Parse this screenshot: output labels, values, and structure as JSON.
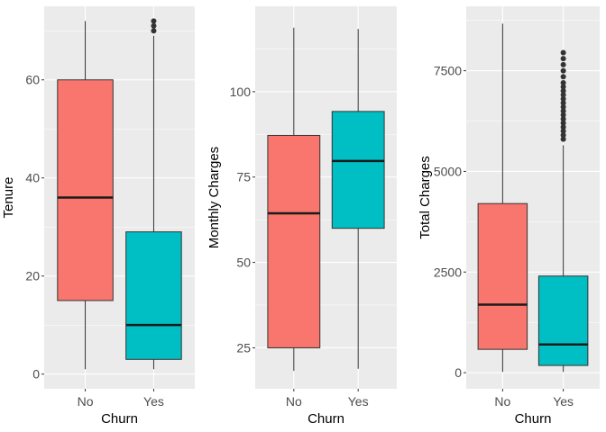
{
  "chart_data": [
    {
      "type": "boxplot",
      "xlabel": "Churn",
      "ylabel": "Tenure",
      "categories": [
        "No",
        "Yes"
      ],
      "ylim": [
        -3,
        75
      ],
      "yticks": [
        0,
        20,
        40,
        60
      ],
      "grid": true,
      "colors": [
        "#F8766D",
        "#00BFC4"
      ],
      "boxes": [
        {
          "category": "No",
          "min": 1,
          "q1": 15,
          "median": 36,
          "q3": 60,
          "max": 72,
          "outliers": []
        },
        {
          "category": "Yes",
          "min": 1,
          "q1": 3,
          "median": 10,
          "q3": 29,
          "max": 69,
          "outliers": [
            70,
            71,
            72
          ]
        }
      ]
    },
    {
      "type": "boxplot",
      "xlabel": "Churn",
      "ylabel": "Monthly Charges",
      "categories": [
        "No",
        "Yes"
      ],
      "ylim": [
        13,
        125
      ],
      "yticks": [
        25,
        50,
        75,
        100
      ],
      "grid": true,
      "colors": [
        "#F8766D",
        "#00BFC4"
      ],
      "boxes": [
        {
          "category": "No",
          "min": 18.25,
          "q1": 25,
          "median": 64.4,
          "q3": 87.2,
          "max": 118.75,
          "outliers": []
        },
        {
          "category": "Yes",
          "min": 18.85,
          "q1": 60,
          "median": 79.7,
          "q3": 94.2,
          "max": 118.35,
          "outliers": []
        }
      ]
    },
    {
      "type": "boxplot",
      "xlabel": "Churn",
      "ylabel": "Total Charges",
      "categories": [
        "No",
        "Yes"
      ],
      "ylim": [
        -400,
        9100
      ],
      "yticks": [
        0,
        2500,
        5000,
        7500
      ],
      "grid": true,
      "colors": [
        "#F8766D",
        "#00BFC4"
      ],
      "boxes": [
        {
          "category": "No",
          "min": 18.8,
          "q1": 580,
          "median": 1690,
          "q3": 4200,
          "max": 8670,
          "outliers": []
        },
        {
          "category": "Yes",
          "min": 18.85,
          "q1": 180,
          "median": 700,
          "q3": 2400,
          "max": 5650,
          "outliers": [
            5800,
            5900,
            6000,
            6100,
            6200,
            6300,
            6400,
            6500,
            6600,
            6700,
            6800,
            6900,
            7000,
            7100,
            7200,
            7350,
            7500,
            7650,
            7800,
            7950
          ]
        }
      ]
    }
  ]
}
